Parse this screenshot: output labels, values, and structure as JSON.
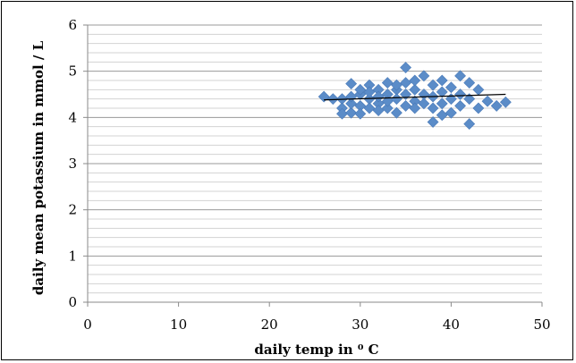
{
  "chart_data": {
    "type": "scatter",
    "title": "",
    "xlabel": "daily temp in ⁰ C",
    "ylabel": "daily mean potassium in mmol / L",
    "xlim": [
      0,
      50
    ],
    "ylim": [
      0,
      6
    ],
    "x_ticks": [
      "0",
      "10",
      "20",
      "30",
      "40",
      "50"
    ],
    "y_ticks": [
      "0",
      "1",
      "2",
      "3",
      "4",
      "5",
      "6"
    ],
    "grid": "horizontal major and minor",
    "marker": "diamond",
    "color": "#5b8cc8",
    "trendline": {
      "type": "linear",
      "x": [
        26,
        46
      ],
      "y": [
        4.38,
        4.5
      ],
      "color": "#000000"
    },
    "points": [
      {
        "x": 26,
        "y": 4.45
      },
      {
        "x": 27,
        "y": 4.4
      },
      {
        "x": 28,
        "y": 4.4
      },
      {
        "x": 28,
        "y": 4.2
      },
      {
        "x": 28,
        "y": 4.08
      },
      {
        "x": 29,
        "y": 4.73
      },
      {
        "x": 29,
        "y": 4.1
      },
      {
        "x": 29,
        "y": 4.3
      },
      {
        "x": 29,
        "y": 4.45
      },
      {
        "x": 30,
        "y": 4.5
      },
      {
        "x": 30,
        "y": 4.25
      },
      {
        "x": 30,
        "y": 4.08
      },
      {
        "x": 30,
        "y": 4.6
      },
      {
        "x": 31,
        "y": 4.4
      },
      {
        "x": 31,
        "y": 4.7
      },
      {
        "x": 31,
        "y": 4.2
      },
      {
        "x": 31,
        "y": 4.55
      },
      {
        "x": 32,
        "y": 4.3
      },
      {
        "x": 32,
        "y": 4.6
      },
      {
        "x": 32,
        "y": 4.45
      },
      {
        "x": 32,
        "y": 4.15
      },
      {
        "x": 33,
        "y": 4.75
      },
      {
        "x": 33,
        "y": 4.5
      },
      {
        "x": 33,
        "y": 4.2
      },
      {
        "x": 33,
        "y": 4.35
      },
      {
        "x": 34,
        "y": 4.1
      },
      {
        "x": 34,
        "y": 4.6
      },
      {
        "x": 34,
        "y": 4.4
      },
      {
        "x": 34,
        "y": 4.7
      },
      {
        "x": 35,
        "y": 5.08
      },
      {
        "x": 35,
        "y": 4.25
      },
      {
        "x": 35,
        "y": 4.5
      },
      {
        "x": 35,
        "y": 4.75
      },
      {
        "x": 36,
        "y": 4.6
      },
      {
        "x": 36,
        "y": 4.35
      },
      {
        "x": 36,
        "y": 4.2
      },
      {
        "x": 36,
        "y": 4.8
      },
      {
        "x": 37,
        "y": 4.9
      },
      {
        "x": 37,
        "y": 4.5
      },
      {
        "x": 37,
        "y": 4.3
      },
      {
        "x": 38,
        "y": 3.9
      },
      {
        "x": 38,
        "y": 4.7
      },
      {
        "x": 38,
        "y": 4.45
      },
      {
        "x": 38,
        "y": 4.2
      },
      {
        "x": 39,
        "y": 4.8
      },
      {
        "x": 39,
        "y": 4.3
      },
      {
        "x": 39,
        "y": 4.05
      },
      {
        "x": 39,
        "y": 4.55
      },
      {
        "x": 40,
        "y": 4.65
      },
      {
        "x": 40,
        "y": 4.4
      },
      {
        "x": 40,
        "y": 4.1
      },
      {
        "x": 41,
        "y": 4.9
      },
      {
        "x": 41,
        "y": 4.5
      },
      {
        "x": 41,
        "y": 4.25
      },
      {
        "x": 42,
        "y": 3.86
      },
      {
        "x": 42,
        "y": 4.75
      },
      {
        "x": 42,
        "y": 4.4
      },
      {
        "x": 43,
        "y": 4.6
      },
      {
        "x": 43,
        "y": 4.2
      },
      {
        "x": 44,
        "y": 4.35
      },
      {
        "x": 45,
        "y": 4.25
      },
      {
        "x": 46,
        "y": 4.33
      }
    ]
  }
}
